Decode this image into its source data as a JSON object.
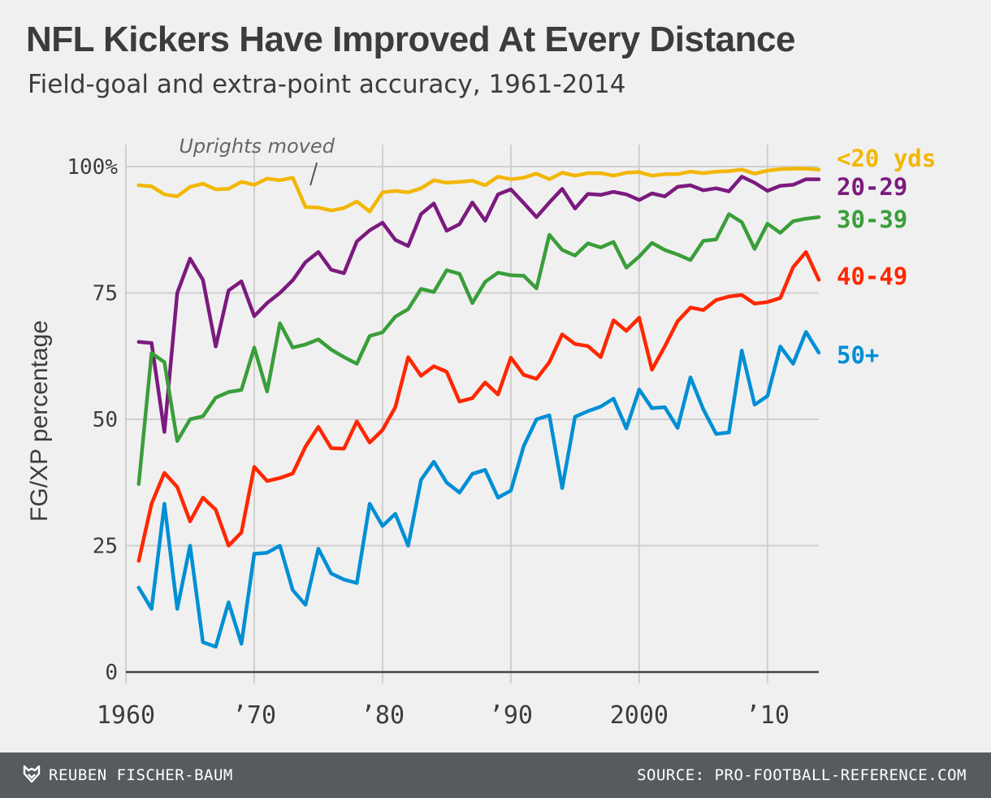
{
  "header": {
    "title": "NFL Kickers Have Improved At Every Distance",
    "subtitle": "Field-goal and extra-point accuracy, 1961-2014"
  },
  "footer": {
    "author": "REUBEN FISCHER-BAUM",
    "source": "SOURCE: PRO-FOOTBALL-REFERENCE.COM",
    "logo_icon": "fivethirtyeight-fox-icon"
  },
  "chart_data": {
    "type": "line",
    "ylabel": "FG/XP percentage",
    "xlabel": "",
    "xlim": [
      1960,
      2014
    ],
    "ylim": [
      0,
      100
    ],
    "grid": true,
    "legend": "direct labels at right end of lines",
    "x_ticks": [
      {
        "value": 1960,
        "label": "1960"
      },
      {
        "value": 1970,
        "label": "’70"
      },
      {
        "value": 1980,
        "label": "’80"
      },
      {
        "value": 1990,
        "label": "’90"
      },
      {
        "value": 2000,
        "label": "2000"
      },
      {
        "value": 2010,
        "label": "’10"
      }
    ],
    "y_ticks": [
      {
        "value": 0,
        "label": "0"
      },
      {
        "value": 25,
        "label": "25"
      },
      {
        "value": 50,
        "label": "50"
      },
      {
        "value": 75,
        "label": "75"
      },
      {
        "value": 100,
        "label": "100%"
      }
    ],
    "annotations": [
      {
        "text": "Uprights moved",
        "x": 1974
      }
    ],
    "x": [
      1961,
      1962,
      1963,
      1964,
      1965,
      1966,
      1967,
      1968,
      1969,
      1970,
      1971,
      1972,
      1973,
      1974,
      1975,
      1976,
      1977,
      1978,
      1979,
      1980,
      1981,
      1982,
      1983,
      1984,
      1985,
      1986,
      1987,
      1988,
      1989,
      1990,
      1991,
      1992,
      1993,
      1994,
      1995,
      1996,
      1997,
      1998,
      1999,
      2000,
      2001,
      2002,
      2003,
      2004,
      2005,
      2006,
      2007,
      2008,
      2009,
      2010,
      2011,
      2012,
      2013,
      2014
    ],
    "series": [
      {
        "name": "<20 yds",
        "color": "#f2b705",
        "values": [
          96.3,
          96.1,
          94.5,
          94.1,
          96.0,
          96.6,
          95.5,
          95.6,
          97.0,
          96.4,
          97.6,
          97.3,
          97.8,
          92.0,
          91.9,
          91.3,
          91.8,
          93.1,
          91.1,
          94.9,
          95.2,
          94.9,
          95.7,
          97.3,
          96.8,
          97.0,
          97.2,
          96.3,
          98.0,
          97.5,
          97.8,
          98.6,
          97.5,
          98.8,
          98.2,
          98.7,
          98.7,
          98.2,
          98.8,
          98.9,
          98.2,
          98.5,
          98.5,
          99.0,
          98.7,
          99.0,
          99.1,
          99.4,
          98.6,
          99.2,
          99.5,
          99.6,
          99.6,
          99.4
        ]
      },
      {
        "name": "20-29",
        "color": "#7b1a7e",
        "values": [
          65.3,
          65.1,
          47.5,
          75.0,
          81.8,
          77.6,
          64.4,
          75.5,
          77.3,
          70.4,
          73.0,
          75.0,
          77.5,
          81.1,
          83.1,
          79.6,
          78.9,
          85.2,
          87.4,
          88.9,
          85.5,
          84.3,
          90.6,
          92.7,
          87.3,
          88.6,
          92.9,
          89.3,
          94.5,
          95.5,
          92.8,
          90.0,
          92.9,
          95.6,
          91.7,
          94.6,
          94.4,
          95.0,
          94.5,
          93.4,
          94.7,
          94.1,
          96.0,
          96.3,
          95.3,
          95.7,
          95.1,
          98.0,
          96.8,
          95.2,
          96.2,
          96.4,
          97.5,
          97.5
        ]
      },
      {
        "name": "30-39",
        "color": "#3a9e3a",
        "values": [
          37.2,
          63.1,
          61.3,
          45.7,
          50.0,
          50.6,
          54.3,
          55.4,
          55.8,
          64.2,
          55.5,
          69.0,
          64.2,
          64.8,
          65.8,
          63.8,
          62.3,
          61.0,
          66.5,
          67.2,
          70.3,
          71.8,
          75.8,
          75.2,
          79.5,
          78.8,
          73.0,
          77.2,
          79.0,
          78.5,
          78.4,
          75.9,
          86.5,
          83.5,
          82.4,
          84.8,
          84.0,
          85.1,
          80.0,
          82.2,
          84.9,
          83.5,
          82.6,
          81.5,
          85.3,
          85.6,
          90.6,
          89.0,
          83.7,
          88.7,
          86.9,
          89.2,
          89.7,
          90.0
        ]
      },
      {
        "name": "40-49",
        "color": "#ff2700",
        "values": [
          22.0,
          33.3,
          39.4,
          36.6,
          29.8,
          34.5,
          32.1,
          25.0,
          27.6,
          40.6,
          37.8,
          38.4,
          39.3,
          44.6,
          48.5,
          44.3,
          44.2,
          49.6,
          45.4,
          47.9,
          52.4,
          62.3,
          58.6,
          60.5,
          59.4,
          53.5,
          54.2,
          57.3,
          54.9,
          62.2,
          58.8,
          58.0,
          61.3,
          66.8,
          64.9,
          64.5,
          62.3,
          69.6,
          67.5,
          70.1,
          59.8,
          64.4,
          69.4,
          72.1,
          71.6,
          73.6,
          74.3,
          74.6,
          72.9,
          73.2,
          74.0,
          80.1,
          83.1,
          77.6
        ]
      },
      {
        "name": "50+",
        "color": "#008fd5",
        "values": [
          16.7,
          12.5,
          33.3,
          12.5,
          25.0,
          5.9,
          5.0,
          13.8,
          5.6,
          23.4,
          23.6,
          25.0,
          16.2,
          13.3,
          24.4,
          19.5,
          18.3,
          17.6,
          33.3,
          28.9,
          31.3,
          25.0,
          38.0,
          41.6,
          37.5,
          35.5,
          39.2,
          40.0,
          34.5,
          35.9,
          44.7,
          50.0,
          50.8,
          36.4,
          50.5,
          51.6,
          52.5,
          54.1,
          48.2,
          55.9,
          52.2,
          52.4,
          48.3,
          58.3,
          52.0,
          47.1,
          47.4,
          63.6,
          52.9,
          54.6,
          64.4,
          61.0,
          67.3,
          63.2
        ]
      }
    ]
  }
}
